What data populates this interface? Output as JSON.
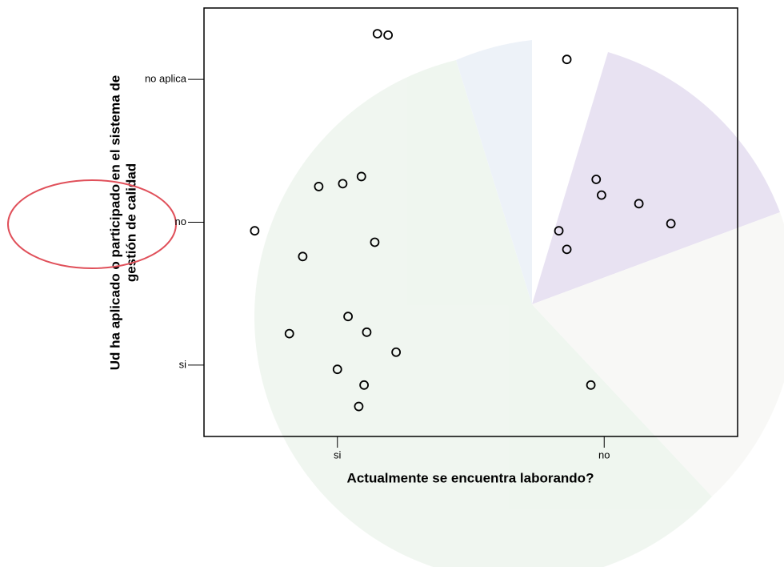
{
  "chart_data": {
    "type": "scatter",
    "xlabel": "Actualmente se encuentra laborando?",
    "ylabel": [
      "Ud ha aplicado o participado en el sistema de",
      "gestión de calidad"
    ],
    "xlim": [
      0.5,
      2.5
    ],
    "ylim": [
      0.5,
      3.5
    ],
    "xticks": [
      {
        "value": 1,
        "label": "si"
      },
      {
        "value": 2,
        "label": "no"
      }
    ],
    "yticks": [
      {
        "value": 1,
        "label": "si"
      },
      {
        "value": 2,
        "label": "no"
      },
      {
        "value": 3,
        "label": "no aplica"
      }
    ],
    "color": "#000000",
    "series": [
      {
        "x": [
          1.15,
          1.19,
          1.86,
          0.69,
          0.93,
          1.02,
          1.09,
          1.14,
          0.87,
          1.97,
          1.99,
          2.13,
          2.25,
          1.83,
          1.86,
          1.04,
          0.82,
          1.11,
          1.22,
          1.0,
          1.1,
          1.08,
          1.95
        ],
        "values": [
          3.32,
          3.31,
          3.14,
          1.94,
          2.25,
          2.27,
          2.32,
          1.86,
          1.76,
          2.3,
          2.19,
          2.13,
          1.99,
          1.94,
          1.81,
          1.34,
          1.22,
          1.23,
          1.09,
          0.97,
          0.86,
          0.71,
          0.86
        ]
      }
    ]
  }
}
